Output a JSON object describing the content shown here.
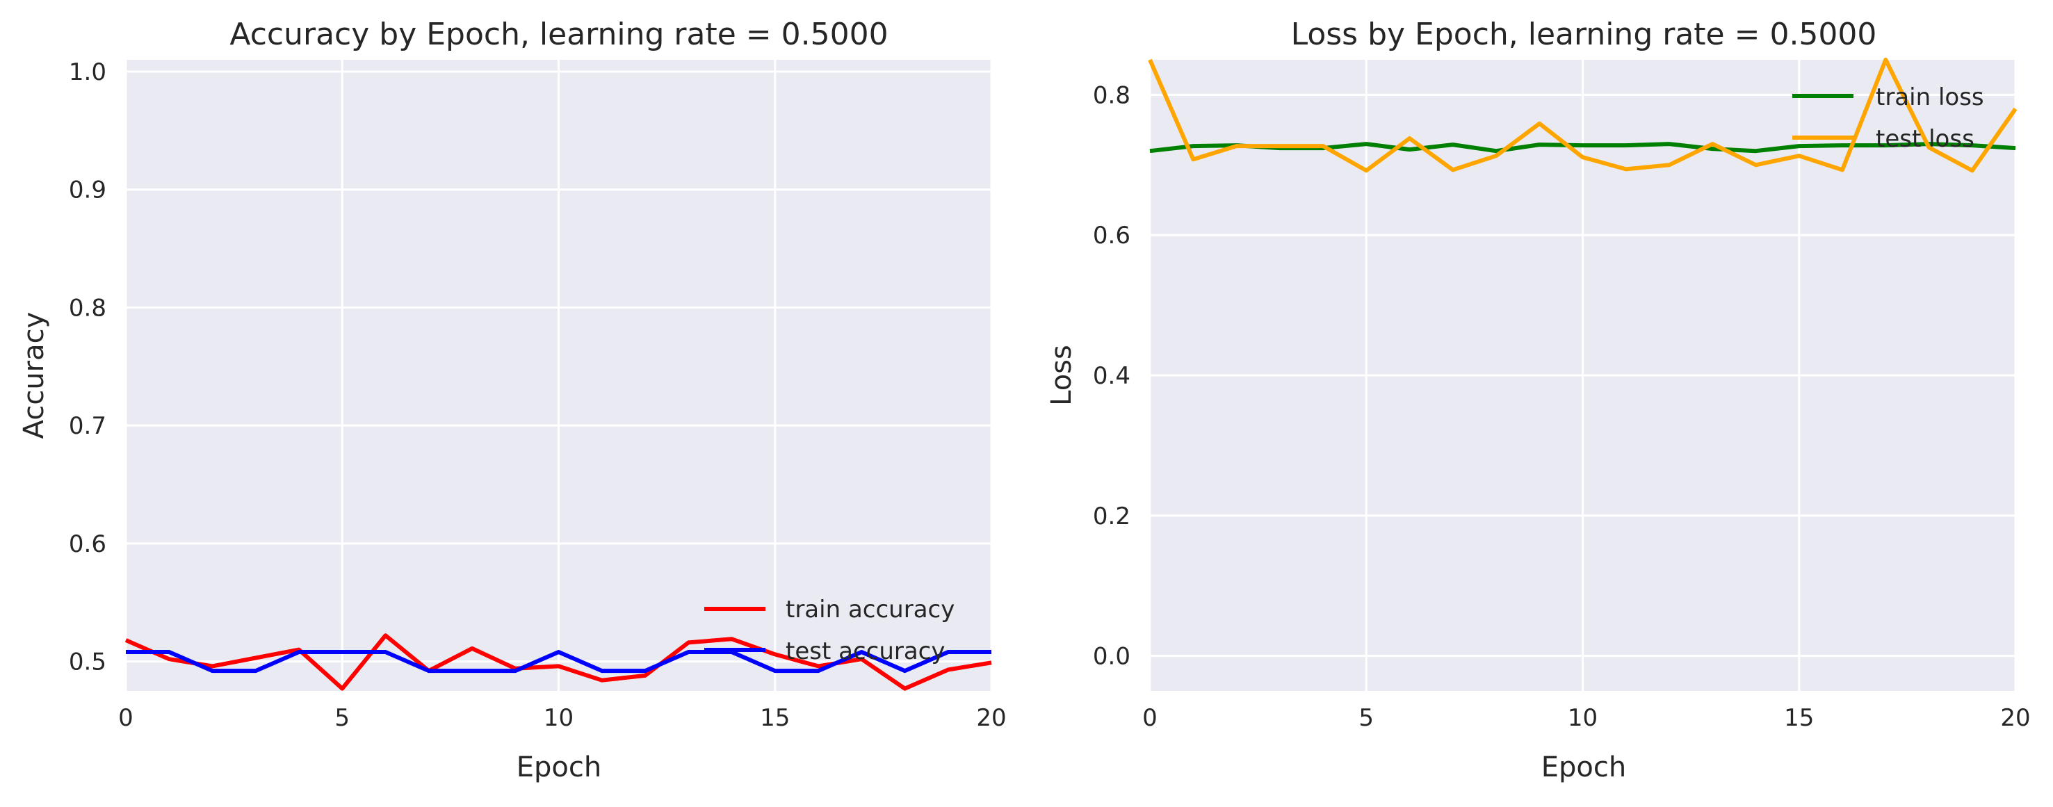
{
  "chart_data": [
    {
      "type": "line",
      "title": "Accuracy by Epoch, learning rate = 0.5000",
      "xlabel": "Epoch",
      "ylabel": "Accuracy",
      "xlim": [
        0,
        20
      ],
      "ylim": [
        0.475,
        1.01
      ],
      "xticks": [
        0,
        5,
        10,
        15,
        20
      ],
      "yticks": [
        0.5,
        0.6,
        0.7,
        0.8,
        0.9,
        1.0
      ],
      "xtick_labels": [
        "0",
        "5",
        "10",
        "15",
        "20"
      ],
      "ytick_labels": [
        "0.5",
        "0.6",
        "0.7",
        "0.8",
        "0.9",
        "1.0"
      ],
      "legend_position": "lower right",
      "grid": true,
      "x": [
        0,
        1,
        2,
        3,
        4,
        5,
        6,
        7,
        8,
        9,
        10,
        11,
        12,
        13,
        14,
        15,
        16,
        17,
        18,
        19,
        20
      ],
      "series": [
        {
          "name": "train accuracy",
          "color": "#ff0000",
          "values": [
            0.518,
            0.502,
            0.496,
            0.503,
            0.51,
            0.477,
            0.522,
            0.492,
            0.511,
            0.494,
            0.496,
            0.484,
            0.488,
            0.516,
            0.519,
            0.506,
            0.496,
            0.502,
            0.477,
            0.493,
            0.499
          ]
        },
        {
          "name": "test accuracy",
          "color": "#0000ff",
          "values": [
            0.508,
            0.508,
            0.492,
            0.492,
            0.508,
            0.508,
            0.508,
            0.492,
            0.492,
            0.492,
            0.508,
            0.492,
            0.492,
            0.508,
            0.508,
            0.492,
            0.492,
            0.508,
            0.492,
            0.508,
            0.508
          ]
        }
      ]
    },
    {
      "type": "line",
      "title": "Loss by Epoch, learning rate = 0.5000",
      "xlabel": "Epoch",
      "ylabel": "Loss",
      "xlim": [
        0,
        20
      ],
      "ylim": [
        -0.05,
        0.85
      ],
      "xticks": [
        0,
        5,
        10,
        15,
        20
      ],
      "yticks": [
        0.0,
        0.2,
        0.4,
        0.6,
        0.8
      ],
      "xtick_labels": [
        "0",
        "5",
        "10",
        "15",
        "20"
      ],
      "ytick_labels": [
        "0.0",
        "0.2",
        "0.4",
        "0.6",
        "0.8"
      ],
      "legend_position": "upper right",
      "grid": true,
      "x": [
        0,
        1,
        2,
        3,
        4,
        5,
        6,
        7,
        8,
        9,
        10,
        11,
        12,
        13,
        14,
        15,
        16,
        17,
        18,
        19,
        20
      ],
      "series": [
        {
          "name": "train loss",
          "color": "#008000",
          "values": [
            0.72,
            0.727,
            0.728,
            0.724,
            0.724,
            0.73,
            0.722,
            0.729,
            0.72,
            0.729,
            0.728,
            0.728,
            0.73,
            0.723,
            0.72,
            0.727,
            0.728,
            0.728,
            0.73,
            0.728,
            0.724
          ]
        },
        {
          "name": "test loss",
          "color": "#ffa500",
          "values": [
            0.85,
            0.708,
            0.727,
            0.727,
            0.727,
            0.692,
            0.738,
            0.693,
            0.713,
            0.759,
            0.711,
            0.694,
            0.7,
            0.73,
            0.7,
            0.713,
            0.693,
            0.85,
            0.725,
            0.692,
            0.78
          ]
        }
      ]
    }
  ]
}
